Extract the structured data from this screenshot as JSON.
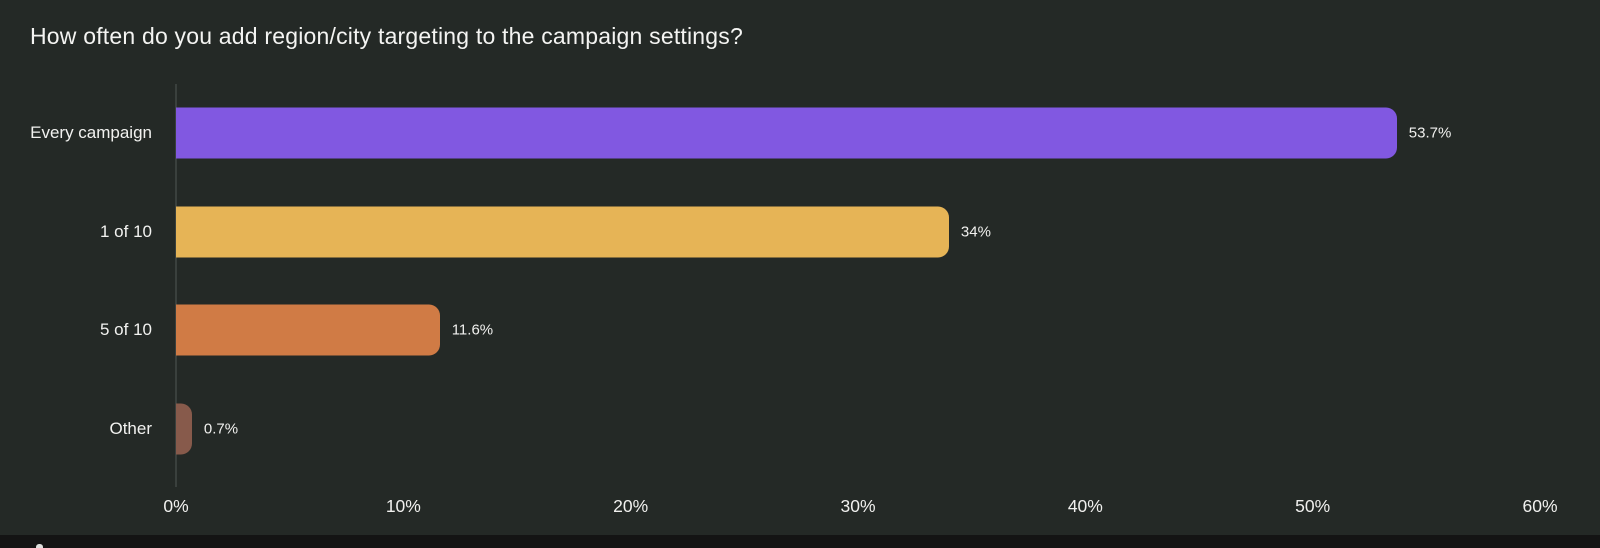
{
  "title": "How often do you add region/city targeting to the campaign settings?",
  "chart_data": {
    "type": "bar",
    "orientation": "horizontal",
    "title": "How often do you add region/city targeting to the campaign settings?",
    "categories": [
      "Every campaign",
      "1 of 10",
      "5 of 10",
      "Other"
    ],
    "values": [
      53.7,
      34,
      11.6,
      0.7
    ],
    "value_labels": [
      "53.7%",
      "34%",
      "11.6%",
      "0.7%"
    ],
    "bar_colors": [
      "#8158e1",
      "#e6b456",
      "#d07b45",
      "#875a4b"
    ],
    "xlabel": "",
    "ylabel": "",
    "xlim": [
      0,
      60
    ],
    "x_ticks": [
      0,
      10,
      20,
      30,
      40,
      50,
      60
    ],
    "x_tick_labels": [
      "0%",
      "10%",
      "20%",
      "30%",
      "40%",
      "50%",
      "60%"
    ],
    "grid": false,
    "legend": false,
    "background_color": "#242926",
    "text_color": "#f2f2f0"
  }
}
